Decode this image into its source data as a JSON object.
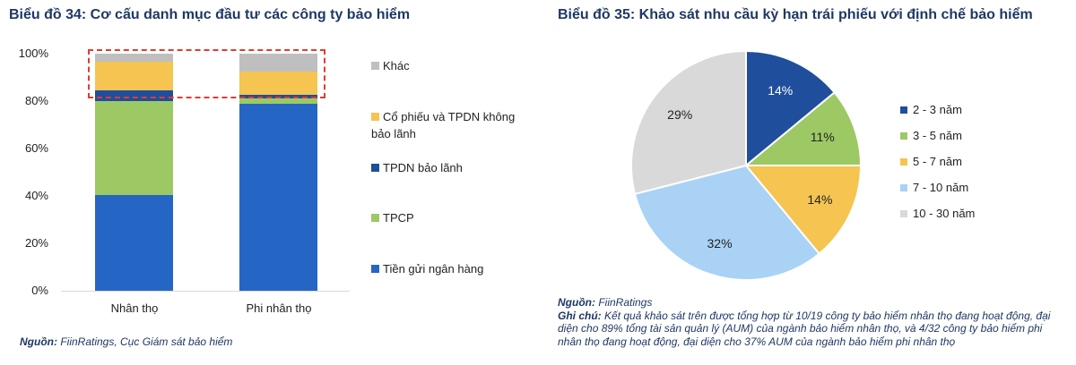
{
  "left_chart": {
    "title": "Biểu đồ 34: Cơ cấu danh mục đầu tư các công ty bảo hiểm",
    "source_label": "Nguồn:",
    "source_text": "FiinRatings, Cục Giám sát bảo hiểm"
  },
  "right_chart": {
    "title": "Biểu đồ 35: Khảo sát nhu cầu kỳ hạn trái phiếu với định chế bảo hiểm",
    "source_label": "Nguồn:",
    "source_text": "FiinRatings",
    "note_label": "Ghi chú:",
    "note_text": "Kết quả khảo sát trên được tổng hợp từ 10/19 công ty bảo hiểm nhân thọ đang hoạt động, đại diện cho 89% tổng tài sản quản lý (AUM) của ngành bảo hiểm nhân thọ, và 4/32 công ty bảo hiểm phi nhân thọ đang hoạt động, đại diện cho 37% AUM của ngành bảo hiểm phi nhân thọ"
  },
  "chart_data": [
    {
      "type": "bar",
      "stacked": true,
      "title": "Biểu đồ 34: Cơ cấu danh mục đầu tư các công ty bảo hiểm",
      "categories": [
        "Nhân thọ",
        "Phi nhân thọ"
      ],
      "yticks": [
        "0%",
        "20%",
        "40%",
        "60%",
        "80%",
        "100%"
      ],
      "ylim": [
        0,
        100
      ],
      "xlabel": "",
      "ylabel": "",
      "legend_position": "right",
      "series": [
        {
          "name": "Tiền gửi ngân hàng",
          "color": "#2566c4",
          "values": [
            40.5,
            79
          ]
        },
        {
          "name": "TPCP",
          "color": "#9dc964",
          "values": [
            39.5,
            2
          ]
        },
        {
          "name": "TPDN bảo lãnh",
          "color": "#1f4e9c",
          "values": [
            4.5,
            1.5
          ]
        },
        {
          "name": "Cổ phiếu và TPDN không bảo lãnh",
          "color": "#f5c451",
          "values": [
            12,
            10
          ]
        },
        {
          "name": "Khác",
          "color": "#bfbfbf",
          "values": [
            3.5,
            7.5
          ]
        }
      ],
      "legend_order": [
        "Khác",
        "Cổ phiếu và TPDN không bảo lãnh",
        "TPDN bảo lãnh",
        "TPCP",
        "Tiền gửi ngân hàng"
      ],
      "annotations": [
        "red dashed box highlighting top segments 80%-100%"
      ]
    },
    {
      "type": "pie",
      "title": "Biểu đồ 35: Khảo sát nhu cầu kỳ hạn trái phiếu với định chế bảo hiểm",
      "legend_position": "right",
      "slices": [
        {
          "label": "2 - 3 năm",
          "value": 14,
          "display": "14%",
          "color": "#1f4e9c"
        },
        {
          "label": "3 - 5 năm",
          "value": 11,
          "display": "11%",
          "color": "#9dc964"
        },
        {
          "label": "5 - 7 năm",
          "value": 14,
          "display": "14%",
          "color": "#f5c451"
        },
        {
          "label": "7 - 10 năm",
          "value": 32,
          "display": "32%",
          "color": "#a9d2f5"
        },
        {
          "label": "10 - 30 năm",
          "value": 29,
          "display": "29%",
          "color": "#d9d9d9"
        }
      ]
    }
  ]
}
